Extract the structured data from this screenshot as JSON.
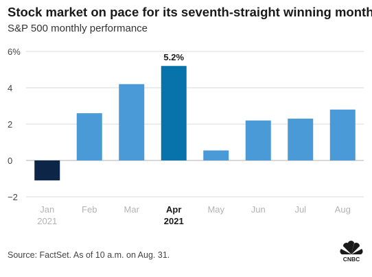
{
  "title": "Stock market on pace for its seventh-straight winning month",
  "subtitle": "S&P 500 monthly performance",
  "source": "Source: FactSet. As of 10 a.m. on Aug. 31.",
  "logo_text": "CNBC",
  "colors": {
    "bar": "#4a9ad8",
    "highlight": "#0872ab",
    "negative": "#0d2547",
    "grid": "#d9d9d9",
    "axis_text": "#444444",
    "dim_text": "#b3b3b3"
  },
  "chart_data": {
    "type": "bar",
    "title": "Stock market on pace for its seventh-straight winning month",
    "subtitle": "S&P 500 monthly performance",
    "categories": [
      "Jan",
      "Feb",
      "Mar",
      "Apr",
      "May",
      "Jun",
      "Jul",
      "Aug"
    ],
    "category_sublabels": [
      "2021",
      "",
      "",
      "2021",
      "",
      "",
      "",
      ""
    ],
    "values": [
      -1.1,
      2.6,
      4.2,
      5.2,
      0.55,
      2.2,
      2.3,
      2.8
    ],
    "highlight_index": 3,
    "highlight_label": "5.2%",
    "ylim": [
      -2,
      6
    ],
    "yticks": [
      -2,
      0,
      2,
      4,
      6
    ],
    "ytick_labels": [
      "−2",
      "0",
      "2",
      "4",
      "6%"
    ],
    "grid": true,
    "xlabel": "",
    "ylabel": ""
  }
}
